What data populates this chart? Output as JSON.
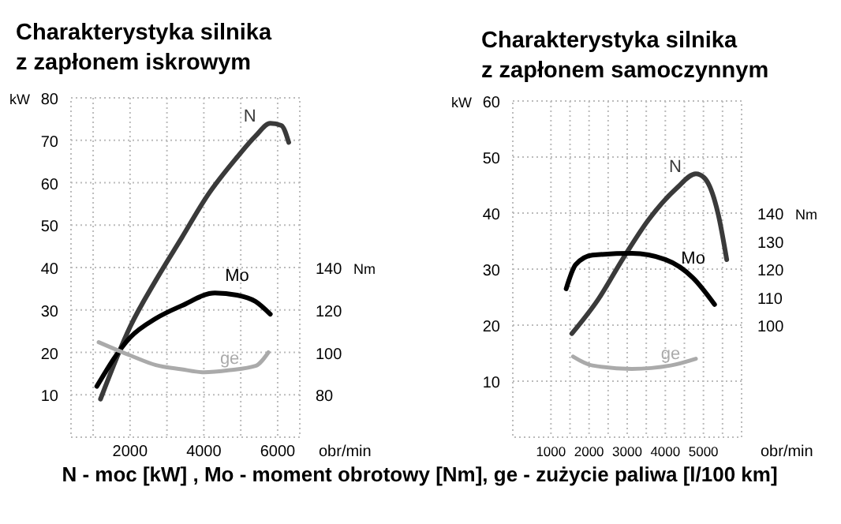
{
  "chart_data": [
    {
      "type": "line",
      "title": "Charakterystyka silnika\nz zapłonem iskrowym",
      "xlabel": "obr/min",
      "ylabel": "kW",
      "y2label": "Nm",
      "xlim": [
        400,
        6600
      ],
      "xticks": [
        {
          "value": 1000,
          "label": null
        },
        2000,
        {
          "value": 3000,
          "label": null
        },
        4000,
        {
          "value": 5000,
          "label": null
        },
        6000
      ],
      "ylim": [
        0,
        80
      ],
      "yticks": [
        10,
        20,
        30,
        40,
        50,
        60,
        70,
        80
      ],
      "y2lim": [
        60,
        220
      ],
      "y2ticks": [
        80,
        100,
        120,
        140
      ],
      "grid": true,
      "line_style": "solid",
      "marker": "none",
      "series": [
        {
          "name": "N",
          "color": "#3a3a3a",
          "x": [
            1200,
            2000,
            2700,
            3400,
            4100,
            4900,
            5400,
            5800,
            6100,
            6300
          ],
          "values": [
            9,
            26,
            37,
            47,
            57,
            66,
            71,
            74,
            73.5,
            69.5
          ]
        },
        {
          "name": "Mo",
          "color": "#000000",
          "axis": "y2",
          "x": [
            1100,
            2000,
            2700,
            3400,
            4300,
            4900,
            5400,
            5800
          ],
          "values": [
            84,
            107,
            116,
            122,
            128,
            127,
            124,
            118
          ]
        },
        {
          "name": "ge",
          "color": "#aaaaaa",
          "x": [
            1150,
            2000,
            2700,
            3400,
            4000,
            4700,
            5400,
            5750
          ],
          "values": [
            22.4,
            19.3,
            17,
            16,
            15.3,
            15.8,
            16.8,
            20
          ]
        }
      ],
      "annotations": [
        "N - moc [kW] , Mo - moment obrotowy [Nm], ge - zużycie paliwa [l/100 km]"
      ]
    },
    {
      "type": "line",
      "title": "Charakterystyka silnika\nz zapłonem samoczynnym",
      "xlabel": "obr/min",
      "ylabel": "kW",
      "y2label": "Nm",
      "xlim": [
        0,
        6000
      ],
      "xticks": [
        1000,
        {
          "value": 1500,
          "label": null
        },
        2000,
        {
          "value": 2500,
          "label": null
        },
        3000,
        {
          "value": 3500,
          "label": null
        },
        4000,
        {
          "value": 4500,
          "label": null
        },
        5000,
        {
          "value": 5500,
          "label": null
        }
      ],
      "ylim": [
        0,
        60
      ],
      "yticks": [
        10,
        20,
        30,
        40,
        50,
        60
      ],
      "y2lim": [
        60,
        180
      ],
      "y2ticks": [
        100,
        110,
        120,
        130,
        140
      ],
      "grid": true,
      "line_style": "solid",
      "marker": "none",
      "series": [
        {
          "name": "N",
          "color": "#3a3a3a",
          "x": [
            1550,
            2240,
            2900,
            3560,
            4290,
            4800,
            5020,
            5390,
            5610
          ],
          "values": [
            18.5,
            24.6,
            32,
            38.8,
            44.4,
            47,
            46.3,
            39.7,
            31.7
          ]
        },
        {
          "name": "Mo",
          "color": "#000000",
          "axis": "y2",
          "x": [
            1400,
            1650,
            2090,
            3120,
            4000,
            4730,
            5290
          ],
          "values": [
            113,
            121.6,
            125,
            125.6,
            123.4,
            116.8,
            107.4
          ]
        },
        {
          "name": "ge",
          "color": "#aaaaaa",
          "x": [
            1580,
            2090,
            3120,
            4140,
            4800
          ],
          "values": [
            14.4,
            12.8,
            12.2,
            12.8,
            14
          ]
        }
      ]
    }
  ]
}
